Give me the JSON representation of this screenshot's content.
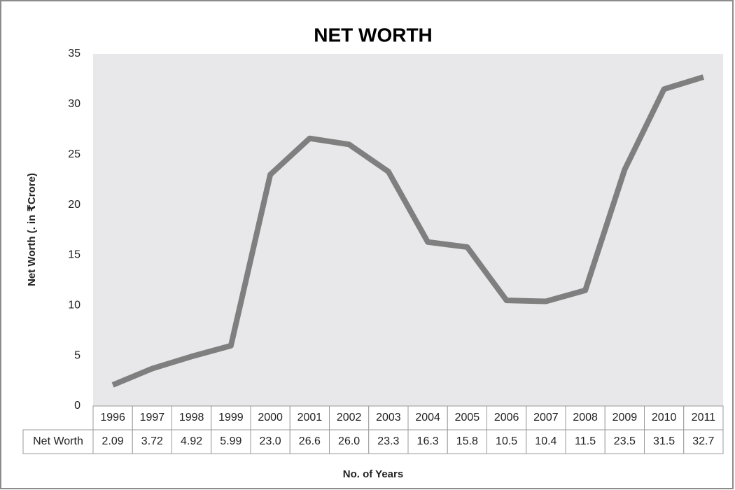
{
  "chart_data": {
    "type": "line",
    "title": "NET WORTH",
    "x_label": "No. of Years",
    "y_label": "Net Worth (. in ₹Crore)",
    "categories": [
      "1996",
      "1997",
      "1998",
      "1999",
      "2000",
      "2001",
      "2002",
      "2003",
      "2004",
      "2005",
      "2006",
      "2007",
      "2008",
      "2009",
      "2010",
      "2011"
    ],
    "series": [
      {
        "name": "Net Worth",
        "color": "#7f7f7f",
        "values": [
          2.09,
          3.72,
          4.92,
          5.99,
          23.0,
          26.6,
          26.0,
          23.3,
          16.3,
          15.8,
          10.5,
          10.4,
          11.5,
          23.5,
          31.5,
          32.7
        ],
        "value_labels": [
          "2.09",
          "3.72",
          "4.92",
          "5.99",
          "23.0",
          "26.6",
          "26.0",
          "23.3",
          "16.3",
          "15.8",
          "10.5",
          "10.4",
          "11.5",
          "23.5",
          "31.5",
          "32.7"
        ]
      }
    ],
    "ylim": [
      0,
      35
    ],
    "yticks": [
      0,
      5,
      10,
      15,
      20,
      25,
      30,
      35
    ],
    "grid": false,
    "plot_background": "#e8e8ea"
  }
}
